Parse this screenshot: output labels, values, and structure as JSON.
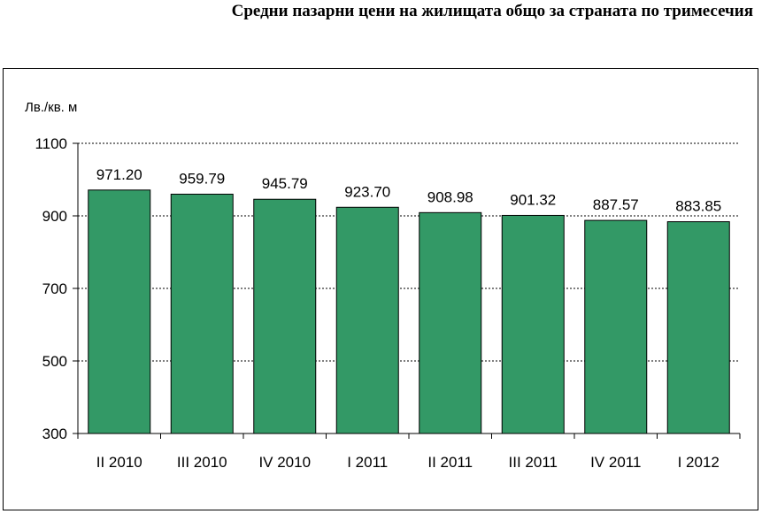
{
  "page": {
    "title": "Средни пазарни цени на жилищата общо за страната по тримесечия"
  },
  "colors": {
    "bar": "#339966",
    "bar_outline": "#000000",
    "grid": "#000000"
  },
  "chart_data": {
    "type": "bar",
    "title": "",
    "ylabel": "Лв./кв. м",
    "xlabel": "",
    "categories": [
      "II 2010",
      "III 2010",
      "IV 2010",
      "I 2011",
      "II 2011",
      "III 2011",
      "IV 2011",
      "I 2012"
    ],
    "values": [
      971.2,
      959.79,
      945.79,
      923.7,
      908.98,
      901.32,
      887.57,
      883.85
    ],
    "value_labels": [
      "971.20",
      "959.79",
      "945.79",
      "923.70",
      "908.98",
      "901.32",
      "887.57",
      "883.85"
    ],
    "ylim": [
      300,
      1100
    ],
    "yticks": [
      300,
      500,
      700,
      900,
      1100
    ],
    "grid": true,
    "grid_style": "dotted",
    "legend": "none"
  }
}
